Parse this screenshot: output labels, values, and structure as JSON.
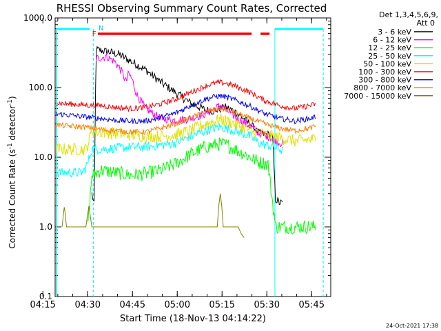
{
  "chart_data": {
    "type": "line",
    "title": "RHESSI Observing Summary Count Rates, Corrected",
    "xlabel": "Start Time (18-Nov-13 04:14:22)",
    "ylabel_main": "Corrected Count Rate (s",
    "ylabel_sup": "-1",
    "ylabel_mid": " detector",
    "ylabel_end": ")",
    "timestamp": "24-Oct-2021 17:38",
    "y_scale": "log",
    "ylim": [
      0.1,
      1000
    ],
    "xlim_minutes": [
      4.7,
      97
    ],
    "x_ticks": [
      {
        "m": 0.6,
        "label": "04:15"
      },
      {
        "m": 15.6,
        "label": "04:30"
      },
      {
        "m": 30.6,
        "label": "04:45"
      },
      {
        "m": 45.6,
        "label": "05:00"
      },
      {
        "m": 60.6,
        "label": "05:15"
      },
      {
        "m": 75.6,
        "label": "05:30"
      },
      {
        "m": 90.6,
        "label": "05:45"
      }
    ],
    "y_ticks": [
      {
        "v": 1000,
        "label": "1000.0"
      },
      {
        "v": 100,
        "label": "100.0"
      },
      {
        "v": 10,
        "label": "10.0"
      },
      {
        "v": 1,
        "label": "1.0"
      },
      {
        "v": 0.1,
        "label": "0.1"
      }
    ],
    "legend_header": [
      "Det 1,3,4,5,6,9,",
      "Att 0"
    ],
    "series": [
      {
        "name": "3 - 6 keV",
        "color": "#000000",
        "points": [
          [
            17,
            3
          ],
          [
            17.8,
            2
          ],
          [
            18.4,
            350
          ],
          [
            22,
            330
          ],
          [
            26,
            300
          ],
          [
            30,
            240
          ],
          [
            35,
            180
          ],
          [
            40,
            120
          ],
          [
            45,
            85
          ],
          [
            50,
            60
          ],
          [
            55,
            48
          ],
          [
            58,
            46
          ],
          [
            60,
            50
          ],
          [
            62,
            52
          ],
          [
            65,
            45
          ],
          [
            70,
            30
          ],
          [
            73,
            22
          ],
          [
            76,
            21
          ],
          [
            77.5,
            20
          ],
          [
            78.5,
            2.5
          ],
          [
            80,
            2.2
          ],
          [
            81.2,
            2.2
          ]
        ]
      },
      {
        "name": "6 - 12 keV",
        "color": "#ff00ff",
        "points": [
          [
            18.4,
            260
          ],
          [
            22,
            280
          ],
          [
            25,
            230
          ],
          [
            27,
            170
          ],
          [
            28.5,
            120
          ],
          [
            29.3,
            160
          ],
          [
            30.5,
            130
          ],
          [
            32,
            80
          ],
          [
            35,
            50
          ],
          [
            40,
            36
          ],
          [
            45,
            34
          ],
          [
            50,
            36
          ],
          [
            55,
            42
          ],
          [
            58,
            50
          ],
          [
            60,
            55
          ],
          [
            62,
            48
          ],
          [
            65,
            38
          ],
          [
            70,
            28
          ],
          [
            73,
            22
          ],
          [
            76,
            20
          ],
          [
            78,
            18
          ],
          [
            80,
            16
          ],
          [
            81.2,
            16
          ]
        ]
      },
      {
        "name": "12 - 25 keV",
        "color": "#00ff00",
        "points": [
          [
            15.5,
            1
          ],
          [
            16.2,
            2
          ],
          [
            17,
            5.5
          ],
          [
            20,
            6.5
          ],
          [
            25,
            6
          ],
          [
            30,
            5.5
          ],
          [
            35,
            5.8
          ],
          [
            40,
            6.5
          ],
          [
            45,
            8
          ],
          [
            50,
            11
          ],
          [
            55,
            14
          ],
          [
            58,
            15
          ],
          [
            60,
            15.5
          ],
          [
            62,
            15
          ],
          [
            65,
            13
          ],
          [
            70,
            10
          ],
          [
            73,
            8.5
          ],
          [
            76,
            8
          ],
          [
            78.5,
            1
          ],
          [
            85,
            1
          ],
          [
            92,
            1
          ]
        ]
      },
      {
        "name": "25 - 50 keV",
        "color": "#00ffff",
        "points": [
          [
            5,
            6
          ],
          [
            14,
            6
          ],
          [
            15.5,
            8
          ],
          [
            17,
            13
          ],
          [
            20,
            13
          ],
          [
            25,
            13.5
          ],
          [
            30,
            14
          ],
          [
            35,
            14
          ],
          [
            40,
            15
          ],
          [
            45,
            16
          ],
          [
            50,
            20
          ],
          [
            55,
            24
          ],
          [
            58,
            26
          ],
          [
            60,
            27
          ],
          [
            62,
            26
          ],
          [
            65,
            24
          ],
          [
            70,
            20
          ],
          [
            73,
            16
          ],
          [
            75,
            15
          ],
          [
            78,
            14
          ],
          [
            80,
            13
          ],
          [
            81.2,
            12
          ]
        ]
      },
      {
        "name": "50 - 100 keV",
        "color": "#e0e000",
        "points": [
          [
            5,
            13
          ],
          [
            15,
            13
          ],
          [
            16,
            17
          ],
          [
            17,
            24
          ],
          [
            20,
            23
          ],
          [
            25,
            22
          ],
          [
            30,
            21
          ],
          [
            35,
            20
          ],
          [
            40,
            20
          ],
          [
            45,
            21
          ],
          [
            50,
            24
          ],
          [
            55,
            30
          ],
          [
            58,
            33
          ],
          [
            60,
            35
          ],
          [
            62,
            33
          ],
          [
            65,
            30
          ],
          [
            70,
            24
          ],
          [
            75,
            21
          ],
          [
            80,
            19
          ],
          [
            85,
            17
          ],
          [
            90,
            18
          ],
          [
            92,
            18
          ]
        ]
      },
      {
        "name": "100 - 300 keV",
        "color": "#ff0000",
        "points": [
          [
            5,
            60
          ],
          [
            15,
            56
          ],
          [
            20,
            55
          ],
          [
            25,
            52
          ],
          [
            30,
            50
          ],
          [
            35,
            52
          ],
          [
            40,
            58
          ],
          [
            45,
            68
          ],
          [
            50,
            85
          ],
          [
            55,
            105
          ],
          [
            58,
            115
          ],
          [
            60,
            118
          ],
          [
            62,
            115
          ],
          [
            65,
            105
          ],
          [
            70,
            85
          ],
          [
            75,
            65
          ],
          [
            80,
            55
          ],
          [
            85,
            50
          ],
          [
            90,
            55
          ],
          [
            92,
            58
          ]
        ]
      },
      {
        "name": "300 - 800 keV",
        "color": "#0000ff",
        "points": [
          [
            5,
            42
          ],
          [
            15,
            38
          ],
          [
            20,
            36
          ],
          [
            25,
            34
          ],
          [
            30,
            33
          ],
          [
            35,
            33
          ],
          [
            40,
            37
          ],
          [
            45,
            43
          ],
          [
            50,
            55
          ],
          [
            55,
            68
          ],
          [
            58,
            74
          ],
          [
            60,
            76
          ],
          [
            62,
            73
          ],
          [
            65,
            66
          ],
          [
            70,
            54
          ],
          [
            75,
            42
          ],
          [
            80,
            36
          ],
          [
            85,
            33
          ],
          [
            90,
            36
          ],
          [
            92,
            38
          ]
        ]
      },
      {
        "name": "800 - 7000 keV",
        "color": "#ff8000",
        "points": [
          [
            5,
            29
          ],
          [
            15,
            27
          ],
          [
            20,
            25
          ],
          [
            25,
            24
          ],
          [
            30,
            23
          ],
          [
            35,
            23
          ],
          [
            40,
            26
          ],
          [
            45,
            30
          ],
          [
            50,
            37
          ],
          [
            55,
            44
          ],
          [
            58,
            48
          ],
          [
            60,
            50
          ],
          [
            62,
            48
          ],
          [
            65,
            44
          ],
          [
            70,
            36
          ],
          [
            75,
            30
          ],
          [
            80,
            26
          ],
          [
            85,
            24
          ],
          [
            90,
            26
          ],
          [
            92,
            28
          ]
        ]
      },
      {
        "name": "7000 - 15000 keV",
        "color": "#808000",
        "points": [
          [
            7,
            1
          ],
          [
            7.8,
            2
          ],
          [
            8.5,
            1
          ],
          [
            15,
            1
          ],
          [
            16,
            2
          ],
          [
            17,
            1
          ],
          [
            59,
            1
          ],
          [
            59.5,
            2
          ],
          [
            60,
            3
          ],
          [
            60.5,
            2
          ],
          [
            61,
            1
          ],
          [
            66,
            1
          ],
          [
            67,
            0.8
          ],
          [
            68,
            0.7
          ]
        ]
      }
    ],
    "annotations": [
      {
        "label": "F",
        "color": "#ff0000"
      },
      {
        "label": "N",
        "color": "#00c0ff"
      }
    ]
  }
}
